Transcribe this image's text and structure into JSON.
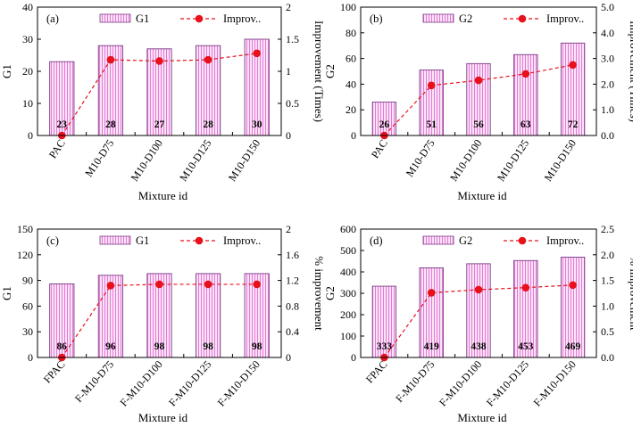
{
  "figure": {
    "xlabel_common": "Mixture id"
  },
  "chart_data": [
    {
      "type": "bar+line",
      "panel": "(a)",
      "categories": [
        "PAC",
        "M10-D75",
        "M10-D100",
        "M10-D125",
        "M10-D150"
      ],
      "bar_series": {
        "name": "G1",
        "values": [
          23,
          28,
          27,
          28,
          30
        ],
        "labels": [
          "23",
          "28",
          "27",
          "28",
          "30"
        ]
      },
      "line_series": {
        "name": "Improv..",
        "values": [
          0,
          1.18,
          1.16,
          1.18,
          1.28
        ]
      },
      "xlabel": "Mixture id",
      "ylabel": "G1",
      "y2label": "Improvement (Times)",
      "ylim": [
        0,
        40
      ],
      "yticks": [
        "0",
        "10",
        "20",
        "30",
        "40"
      ],
      "y2lim": [
        0,
        2
      ],
      "y2ticks": [
        "0",
        "0.5",
        "1",
        "1.5",
        "2"
      ],
      "legend_position": "top"
    },
    {
      "type": "bar+line",
      "panel": "(b)",
      "categories": [
        "PAC",
        "M10-D75",
        "M10-D100",
        "M10-D125",
        "M10-D150"
      ],
      "bar_series": {
        "name": "G2",
        "values": [
          26,
          51,
          56,
          63,
          72
        ],
        "labels": [
          "26",
          "51",
          "56",
          "63",
          "72"
        ]
      },
      "line_series": {
        "name": "Improv..",
        "values": [
          0,
          1.95,
          2.15,
          2.4,
          2.75
        ]
      },
      "xlabel": "Mixture id",
      "ylabel": "G2",
      "y2label": "Improvement (Times)",
      "ylim": [
        0,
        100
      ],
      "yticks": [
        "0",
        "20",
        "40",
        "60",
        "80",
        "100"
      ],
      "y2lim": [
        0,
        5
      ],
      "y2ticks": [
        "0.0",
        "1.0",
        "2.0",
        "3.0",
        "4.0",
        "5.0"
      ],
      "legend_position": "top"
    },
    {
      "type": "bar+line",
      "panel": "(c)",
      "categories": [
        "FPAC",
        "F-M10-D75",
        "F-M10-D100",
        "F-M10-D125",
        "F-M10-D150"
      ],
      "bar_series": {
        "name": "G1",
        "values": [
          86,
          96,
          98,
          98,
          98
        ],
        "labels": [
          "86",
          "96",
          "98",
          "98",
          "98"
        ]
      },
      "line_series": {
        "name": "Improv..",
        "values": [
          0,
          1.12,
          1.14,
          1.14,
          1.14
        ]
      },
      "xlabel": "Mixture id",
      "ylabel": "G1",
      "y2label": "% improvement",
      "ylim": [
        0,
        150
      ],
      "yticks": [
        "0",
        "30",
        "60",
        "90",
        "120",
        "150"
      ],
      "y2lim": [
        0,
        2
      ],
      "y2ticks": [
        "0",
        "0.4",
        "0.8",
        "1.2",
        "1.6",
        "2"
      ],
      "legend_position": "top"
    },
    {
      "type": "bar+line",
      "panel": "(d)",
      "categories": [
        "FPAC",
        "F-M10-D75",
        "F-M10-D100",
        "F-M10-D125",
        "F-M10-D150"
      ],
      "bar_series": {
        "name": "G2",
        "values": [
          333,
          419,
          438,
          453,
          469
        ],
        "labels": [
          "333",
          "419",
          "438",
          "453",
          "469"
        ]
      },
      "line_series": {
        "name": "Improv..",
        "values": [
          0,
          1.26,
          1.32,
          1.36,
          1.41
        ]
      },
      "xlabel": "Mixture id",
      "ylabel": "G2",
      "y2label": "% improvement",
      "ylim": [
        0,
        600
      ],
      "yticks": [
        "0",
        "100",
        "200",
        "300",
        "400",
        "500",
        "600"
      ],
      "y2lim": [
        0,
        2.5
      ],
      "y2ticks": [
        "0.0",
        "0.5",
        "1.0",
        "1.5",
        "2.0",
        "2.5"
      ],
      "legend_position": "top"
    }
  ],
  "colors": {
    "bar_fill": "#fbe3f7",
    "bar_stripe": "#e37ad6",
    "bar_edge": "#7a3b86",
    "line": "#e8101a",
    "marker": "#e8101a",
    "axis": "#000000"
  }
}
